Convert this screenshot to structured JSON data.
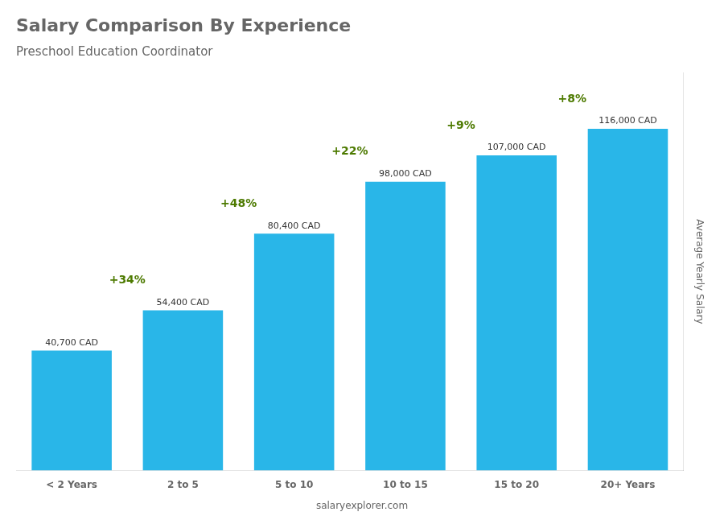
{
  "chart_data": {
    "type": "bar",
    "title": "Salary Comparison By Experience",
    "subtitle": "Preschool Education Coordinator",
    "ylabel": "Average Yearly Salary",
    "categories": [
      "< 2 Years",
      "2 to 5",
      "5 to 10",
      "10 to 15",
      "15 to 20",
      "20+ Years"
    ],
    "values": [
      40700,
      54400,
      80400,
      98000,
      107000,
      116000
    ],
    "value_labels": [
      "40,700 CAD",
      "54,400 CAD",
      "80,400 CAD",
      "98,000 CAD",
      "107,000 CAD",
      "116,000 CAD"
    ],
    "data_labels": true,
    "annotations": [
      "+34%",
      "+48%",
      "+22%",
      "+9%",
      "+8%"
    ],
    "caption": "salaryexplorer.com",
    "color": "#29b6e8",
    "ylim": [
      0,
      135000
    ],
    "tick_labels": "x",
    "grid": false
  }
}
